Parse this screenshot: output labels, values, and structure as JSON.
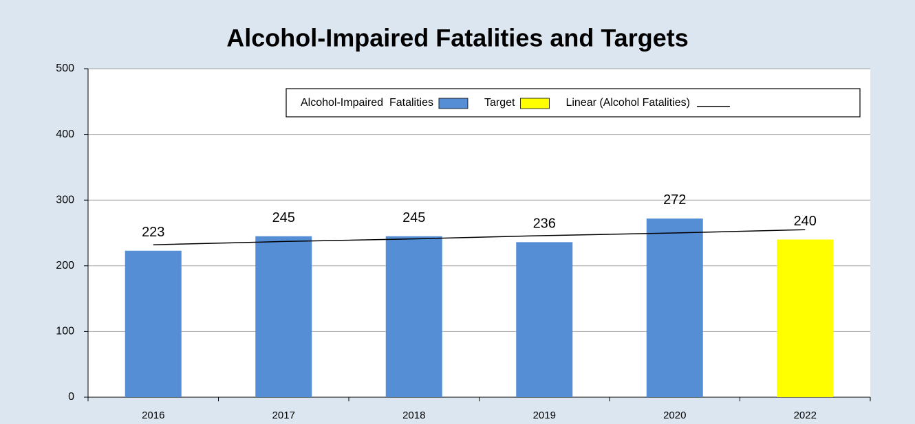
{
  "chart_data": {
    "type": "bar",
    "title": "Alcohol-Impaired Fatalities and Targets",
    "categories": [
      "2016",
      "2017",
      "2018",
      "2019",
      "2020",
      "2022"
    ],
    "series": [
      {
        "name": "Alcohol-Impaired  Fatalities",
        "color": "#558ed5",
        "values": [
          223,
          245,
          245,
          236,
          272,
          null
        ]
      },
      {
        "name": "Target",
        "color": "#ffff00",
        "values": [
          null,
          null,
          null,
          null,
          null,
          240
        ]
      },
      {
        "name": "Linear (Alcohol Fatalities)",
        "type": "line",
        "color": "#000000",
        "values": [
          232,
          237,
          241,
          246,
          250,
          255
        ]
      }
    ],
    "ylim": [
      0,
      500
    ],
    "yticks": [
      0,
      100,
      200,
      300,
      400,
      500
    ],
    "grid": true,
    "legend": "top"
  }
}
